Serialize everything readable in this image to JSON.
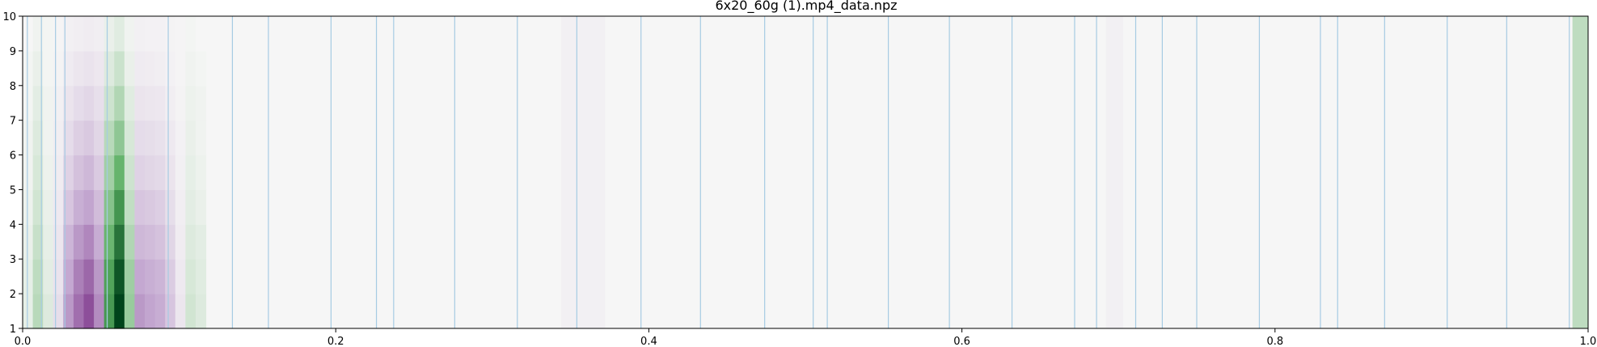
{
  "chart_data": {
    "type": "heatmap",
    "title": "6x20_60g (1).mp4_data.npz",
    "xlabel": "",
    "ylabel": "",
    "xlim": [
      0.0,
      1.0
    ],
    "ylim": [
      1,
      10
    ],
    "x_ticks": [
      "0.0",
      "0.2",
      "0.4",
      "0.6",
      "0.8",
      "1.0"
    ],
    "y_ticks": [
      "1",
      "2",
      "3",
      "4",
      "5",
      "6",
      "7",
      "8",
      "9",
      "10"
    ],
    "colormap": "PRGn",
    "colors": {
      "background": "#f6f6f6",
      "marker_line": "#a6cbe3",
      "axis": "#000000"
    },
    "marker_lines_x": [
      0.003,
      0.012,
      0.021,
      0.027,
      0.054,
      0.093,
      0.134,
      0.157,
      0.197,
      0.226,
      0.237,
      0.276,
      0.316,
      0.354,
      0.395,
      0.433,
      0.474,
      0.505,
      0.514,
      0.553,
      0.592,
      0.632,
      0.672,
      0.686,
      0.711,
      0.728,
      0.75,
      0.79,
      0.829,
      0.84,
      0.87,
      0.91,
      0.948,
      0.988
    ],
    "heat_rows": [
      {
        "y_from": 1,
        "y_to": 2,
        "values": [
          0.05,
          0.2,
          0.08,
          -0.15,
          -0.55,
          -0.72,
          -0.85,
          -0.6,
          0.6,
          1.0,
          0.3,
          -0.55,
          -0.5,
          -0.45,
          -0.3,
          -0.1,
          0.12,
          0.08
        ]
      },
      {
        "y_from": 2,
        "y_to": 3,
        "values": [
          0.05,
          0.18,
          0.06,
          -0.12,
          -0.48,
          -0.65,
          -0.75,
          -0.55,
          0.55,
          0.92,
          0.28,
          -0.48,
          -0.44,
          -0.4,
          -0.26,
          -0.08,
          0.1,
          0.07
        ]
      },
      {
        "y_from": 3,
        "y_to": 4,
        "values": [
          0.04,
          0.15,
          0.05,
          -0.1,
          -0.4,
          -0.55,
          -0.62,
          -0.45,
          0.45,
          0.78,
          0.22,
          -0.38,
          -0.36,
          -0.32,
          -0.2,
          -0.06,
          0.08,
          0.06
        ]
      },
      {
        "y_from": 4,
        "y_to": 5,
        "values": [
          0.03,
          0.12,
          0.04,
          -0.08,
          -0.3,
          -0.44,
          -0.5,
          -0.36,
          0.36,
          0.62,
          0.17,
          -0.3,
          -0.28,
          -0.25,
          -0.15,
          -0.05,
          0.06,
          0.04
        ]
      },
      {
        "y_from": 5,
        "y_to": 6,
        "values": [
          0.02,
          0.1,
          0.03,
          -0.06,
          -0.22,
          -0.33,
          -0.38,
          -0.27,
          0.27,
          0.46,
          0.13,
          -0.22,
          -0.2,
          -0.18,
          -0.11,
          -0.04,
          0.05,
          0.03
        ]
      },
      {
        "y_from": 6,
        "y_to": 7,
        "values": [
          0.02,
          0.08,
          0.02,
          -0.05,
          -0.16,
          -0.24,
          -0.28,
          -0.2,
          0.2,
          0.33,
          0.1,
          -0.16,
          -0.15,
          -0.13,
          -0.08,
          -0.03,
          0.04,
          0.02
        ]
      },
      {
        "y_from": 7,
        "y_to": 8,
        "values": [
          0.01,
          0.06,
          0.02,
          -0.04,
          -0.11,
          -0.16,
          -0.19,
          -0.14,
          0.13,
          0.22,
          0.07,
          -0.11,
          -0.1,
          -0.09,
          -0.05,
          -0.02,
          0.03,
          0.02
        ]
      },
      {
        "y_from": 8,
        "y_to": 9,
        "values": [
          0.01,
          0.04,
          0.01,
          -0.02,
          -0.07,
          -0.1,
          -0.12,
          -0.09,
          0.08,
          0.14,
          0.04,
          -0.07,
          -0.06,
          -0.05,
          -0.03,
          -0.01,
          0.02,
          0.01
        ]
      },
      {
        "y_from": 9,
        "y_to": 10,
        "values": [
          0.0,
          0.02,
          0.01,
          -0.01,
          -0.04,
          -0.05,
          -0.06,
          -0.05,
          0.04,
          0.07,
          0.02,
          -0.04,
          -0.03,
          -0.03,
          -0.02,
          -0.01,
          0.01,
          0.0
        ]
      }
    ],
    "heat_x_range": [
      0.0,
      0.117
    ],
    "faint_bands": [
      {
        "x_from": 0.344,
        "x_to": 0.372,
        "value": -0.04
      },
      {
        "x_from": 0.692,
        "x_to": 0.703,
        "value": -0.04
      },
      {
        "x_from": 0.99,
        "x_to": 1.0,
        "value": 0.18
      }
    ],
    "grid": false,
    "legend": "none"
  }
}
